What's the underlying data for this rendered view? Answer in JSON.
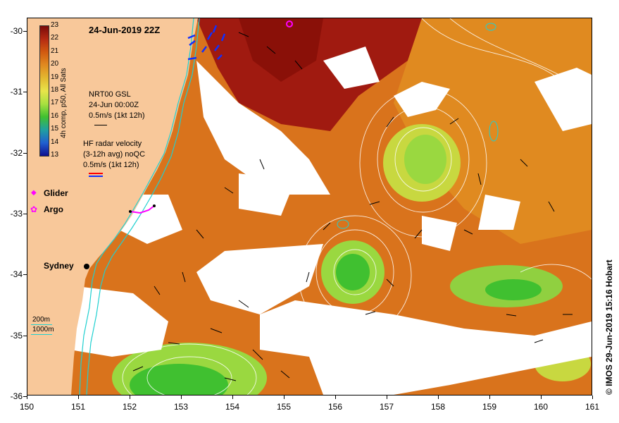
{
  "title": "24-Jun-2019 22Z",
  "credit": "© IMOS 29-Jun-2019 15:16 Hobart",
  "colorbar": {
    "title": "4h comp, p50, All Sats",
    "ticks": [
      "23",
      "22",
      "21",
      "20",
      "19",
      "18",
      "17",
      "16",
      "15",
      "14",
      "13"
    ],
    "colors": [
      "#7a0a0a",
      "#b52a12",
      "#d15a10",
      "#e08a20",
      "#e3b830",
      "#e8e44a",
      "#a8e040",
      "#40c030",
      "#20a0a0",
      "#2060d0",
      "#101090"
    ]
  },
  "legend": {
    "gsl_lines": [
      "NRT00 GSL",
      "24-Jun 00:00Z",
      "0.5m/s (1kt 12h)"
    ],
    "radar_lines": [
      "HF radar velocity",
      "(3-12h avg) noQC",
      "0.5m/s (1kt 12h)"
    ],
    "glider_label": "Glider",
    "argo_label": "Argo",
    "isobath_200": "200m",
    "isobath_1000": "1000m"
  },
  "place_label": "Sydney",
  "axes": {
    "x_ticks": [
      "150",
      "151",
      "152",
      "153",
      "154",
      "155",
      "156",
      "157",
      "158",
      "159",
      "160",
      "161"
    ],
    "y_ticks": [
      "-30",
      "-31",
      "-32",
      "-33",
      "-34",
      "-35",
      "-36"
    ]
  },
  "colors": {
    "land": "#f8c89a",
    "warm_sst": "#d9731c",
    "hot_sst": "#a01a10",
    "cool_sst": "#60cc30",
    "isobath": "#20d0d0",
    "glider": "#ff00ff",
    "radar_arrow": "#1030ff"
  }
}
